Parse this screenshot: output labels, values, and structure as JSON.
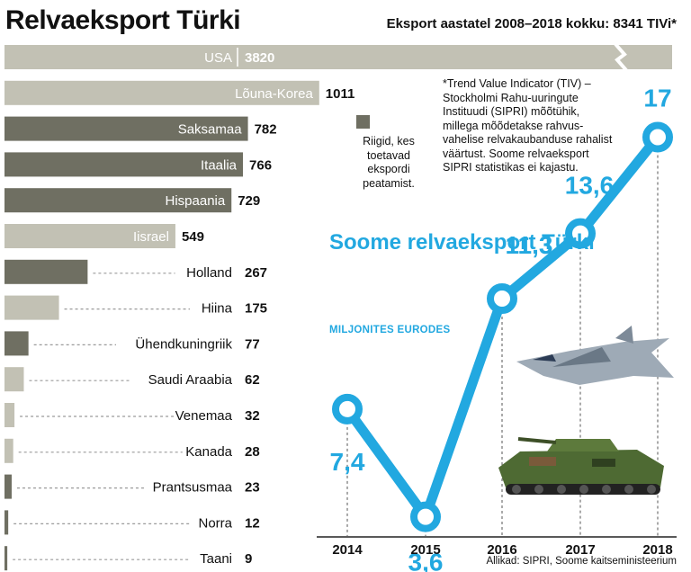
{
  "title": "Relvaeksport Türki",
  "subtitle": "Eksport aastatel 2008–2018 kokku: 8341 TIVi*",
  "tiv_note": "*Trend Value Indicator (TIV) – Stockholmi Rahu-uuringute Instituudi (SIPRI) mõõtühik, millega mõõdetakse rahvus-vahelise relvakaubanduse rahalist väärtust. Soome relvaeksport SIPRI statistikas ei kajastu.",
  "legend_text": "Riigid, kes toetavad ekspordi peatamist.",
  "line_chart_title": "Soome relvaeksport Türki",
  "line_chart_unit": "MILJONITES EURODES",
  "source": "Allikad: SIPRI, Soome kaitseministeerium",
  "colors": {
    "dark_bar": "#6f6f62",
    "light_bar": "#c2c1b4",
    "line": "#22a8e0"
  },
  "icons": {
    "fighter_jet": "fighter-jet-icon",
    "tank": "armored-vehicle-icon"
  },
  "chart_data": [
    {
      "type": "bar",
      "orientation": "horizontal",
      "title": "Eksport aastatel 2008–2018 kokku: 8341 TIVi*",
      "categories": [
        "USA",
        "Lõuna-Korea",
        "Saksamaa",
        "Itaalia",
        "Hispaania",
        "Iisrael",
        "Holland",
        "Hiina",
        "Ühendkuningriik",
        "Saudi Araabia",
        "Venemaa",
        "Kanada",
        "Prantsusmaa",
        "Norra",
        "Taani"
      ],
      "values": [
        3820,
        1011,
        782,
        766,
        729,
        549,
        267,
        175,
        77,
        62,
        32,
        28,
        23,
        12,
        9
      ],
      "supports_export_halt": [
        false,
        false,
        true,
        true,
        true,
        false,
        true,
        false,
        true,
        false,
        false,
        false,
        true,
        true,
        true
      ],
      "unit": "TIV",
      "axis_break_on": "USA"
    },
    {
      "type": "line",
      "title": "Soome relvaeksport Türki",
      "ylabel": "MILJONITES EURODES",
      "x": [
        "2014",
        "2015",
        "2016",
        "2017",
        "2018"
      ],
      "y": [
        7.4,
        3.6,
        11.3,
        13.6,
        17
      ],
      "value_labels": [
        "7,4",
        "3,6",
        "11,3",
        "13,6",
        "17"
      ],
      "ylim": [
        0,
        20
      ]
    }
  ]
}
